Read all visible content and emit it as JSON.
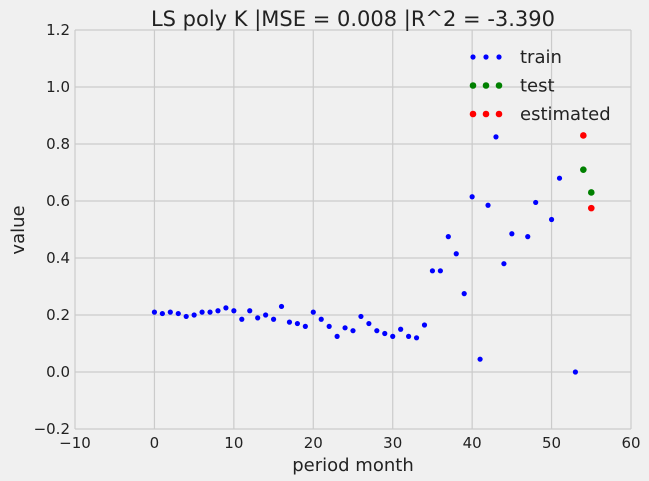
{
  "chart_data": {
    "type": "scatter",
    "title": "LS poly K |MSE = 0.008 |R^2 = -3.390",
    "xlabel": "period month",
    "ylabel": "value",
    "xlim": [
      -10,
      60
    ],
    "ylim": [
      -0.2,
      1.2
    ],
    "xticks": [
      -10,
      0,
      10,
      20,
      30,
      40,
      50,
      60
    ],
    "yticks": [
      -0.2,
      0.0,
      0.2,
      0.4,
      0.6,
      0.8,
      1.0,
      1.2
    ],
    "xtick_labels": [
      "−10",
      "0",
      "10",
      "20",
      "30",
      "40",
      "50",
      "60"
    ],
    "ytick_labels": [
      "−0.2",
      "0.0",
      "0.2",
      "0.4",
      "0.6",
      "0.8",
      "1.0",
      "1.2"
    ],
    "grid": true,
    "legend_position": "top-right",
    "series": [
      {
        "name": "train",
        "color": "#0000ff",
        "x": [
          0,
          1,
          2,
          3,
          4,
          5,
          6,
          7,
          8,
          9,
          10,
          11,
          12,
          13,
          14,
          15,
          16,
          17,
          18,
          19,
          20,
          21,
          22,
          23,
          24,
          25,
          26,
          27,
          28,
          29,
          30,
          31,
          32,
          33,
          34,
          35,
          36,
          37,
          38,
          39,
          40,
          41,
          42,
          43,
          44,
          45,
          47,
          48,
          50,
          51,
          53
        ],
        "y": [
          0.21,
          0.205,
          0.21,
          0.205,
          0.195,
          0.2,
          0.21,
          0.21,
          0.215,
          0.225,
          0.215,
          0.185,
          0.215,
          0.19,
          0.2,
          0.185,
          0.23,
          0.175,
          0.17,
          0.16,
          0.21,
          0.185,
          0.16,
          0.125,
          0.155,
          0.145,
          0.195,
          0.17,
          0.145,
          0.135,
          0.125,
          0.15,
          0.125,
          0.12,
          0.165,
          0.355,
          0.355,
          0.475,
          0.415,
          0.275,
          0.615,
          0.045,
          0.585,
          0.825,
          0.38,
          0.485,
          0.475,
          0.595,
          0.535,
          0.68,
          0.0
        ]
      },
      {
        "name": "test",
        "color": "#008000",
        "x": [
          54,
          55
        ],
        "y": [
          0.71,
          0.63
        ]
      },
      {
        "name": "estimated",
        "color": "#ff0000",
        "x": [
          54,
          55
        ],
        "y": [
          0.83,
          0.575
        ]
      }
    ]
  }
}
